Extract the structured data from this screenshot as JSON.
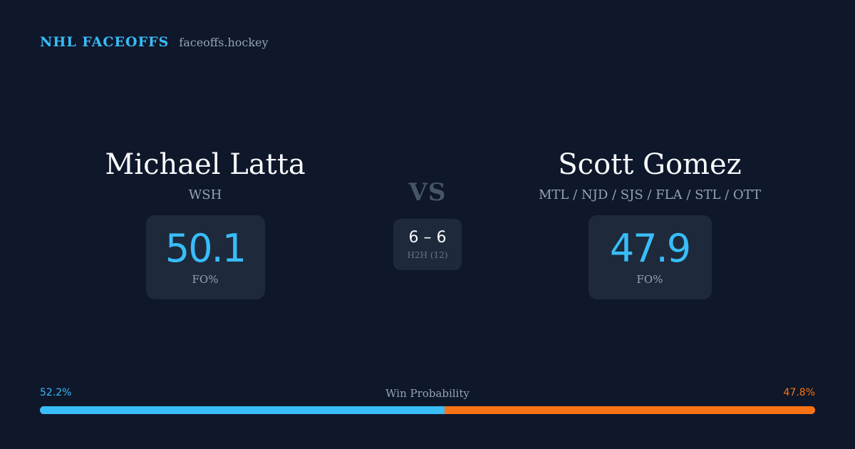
{
  "header": {
    "title": "NHL FACEOFFS",
    "domain": "faceoffs.hockey"
  },
  "players": [
    {
      "name": "Michael Latta",
      "teams": "WSH",
      "fo_pct": "50.1",
      "fo_label": "FO%"
    },
    {
      "name": "Scott Gomez",
      "teams": "MTL / NJD / SJS / FLA / STL / OTT",
      "fo_pct": "47.9",
      "fo_label": "FO%"
    }
  ],
  "versus": {
    "label": "VS",
    "h2h_score": "6 – 6",
    "h2h_label": "H2H (12)"
  },
  "win_probability": {
    "label": "Win Probability",
    "left_text": "52.2%",
    "right_text": "47.8%",
    "left_value": 52.2,
    "right_value": 47.8
  },
  "colors": {
    "background": "#0f172a",
    "accent_left": "#38bdf8",
    "accent_right": "#f97316",
    "card": "#1e293b"
  }
}
